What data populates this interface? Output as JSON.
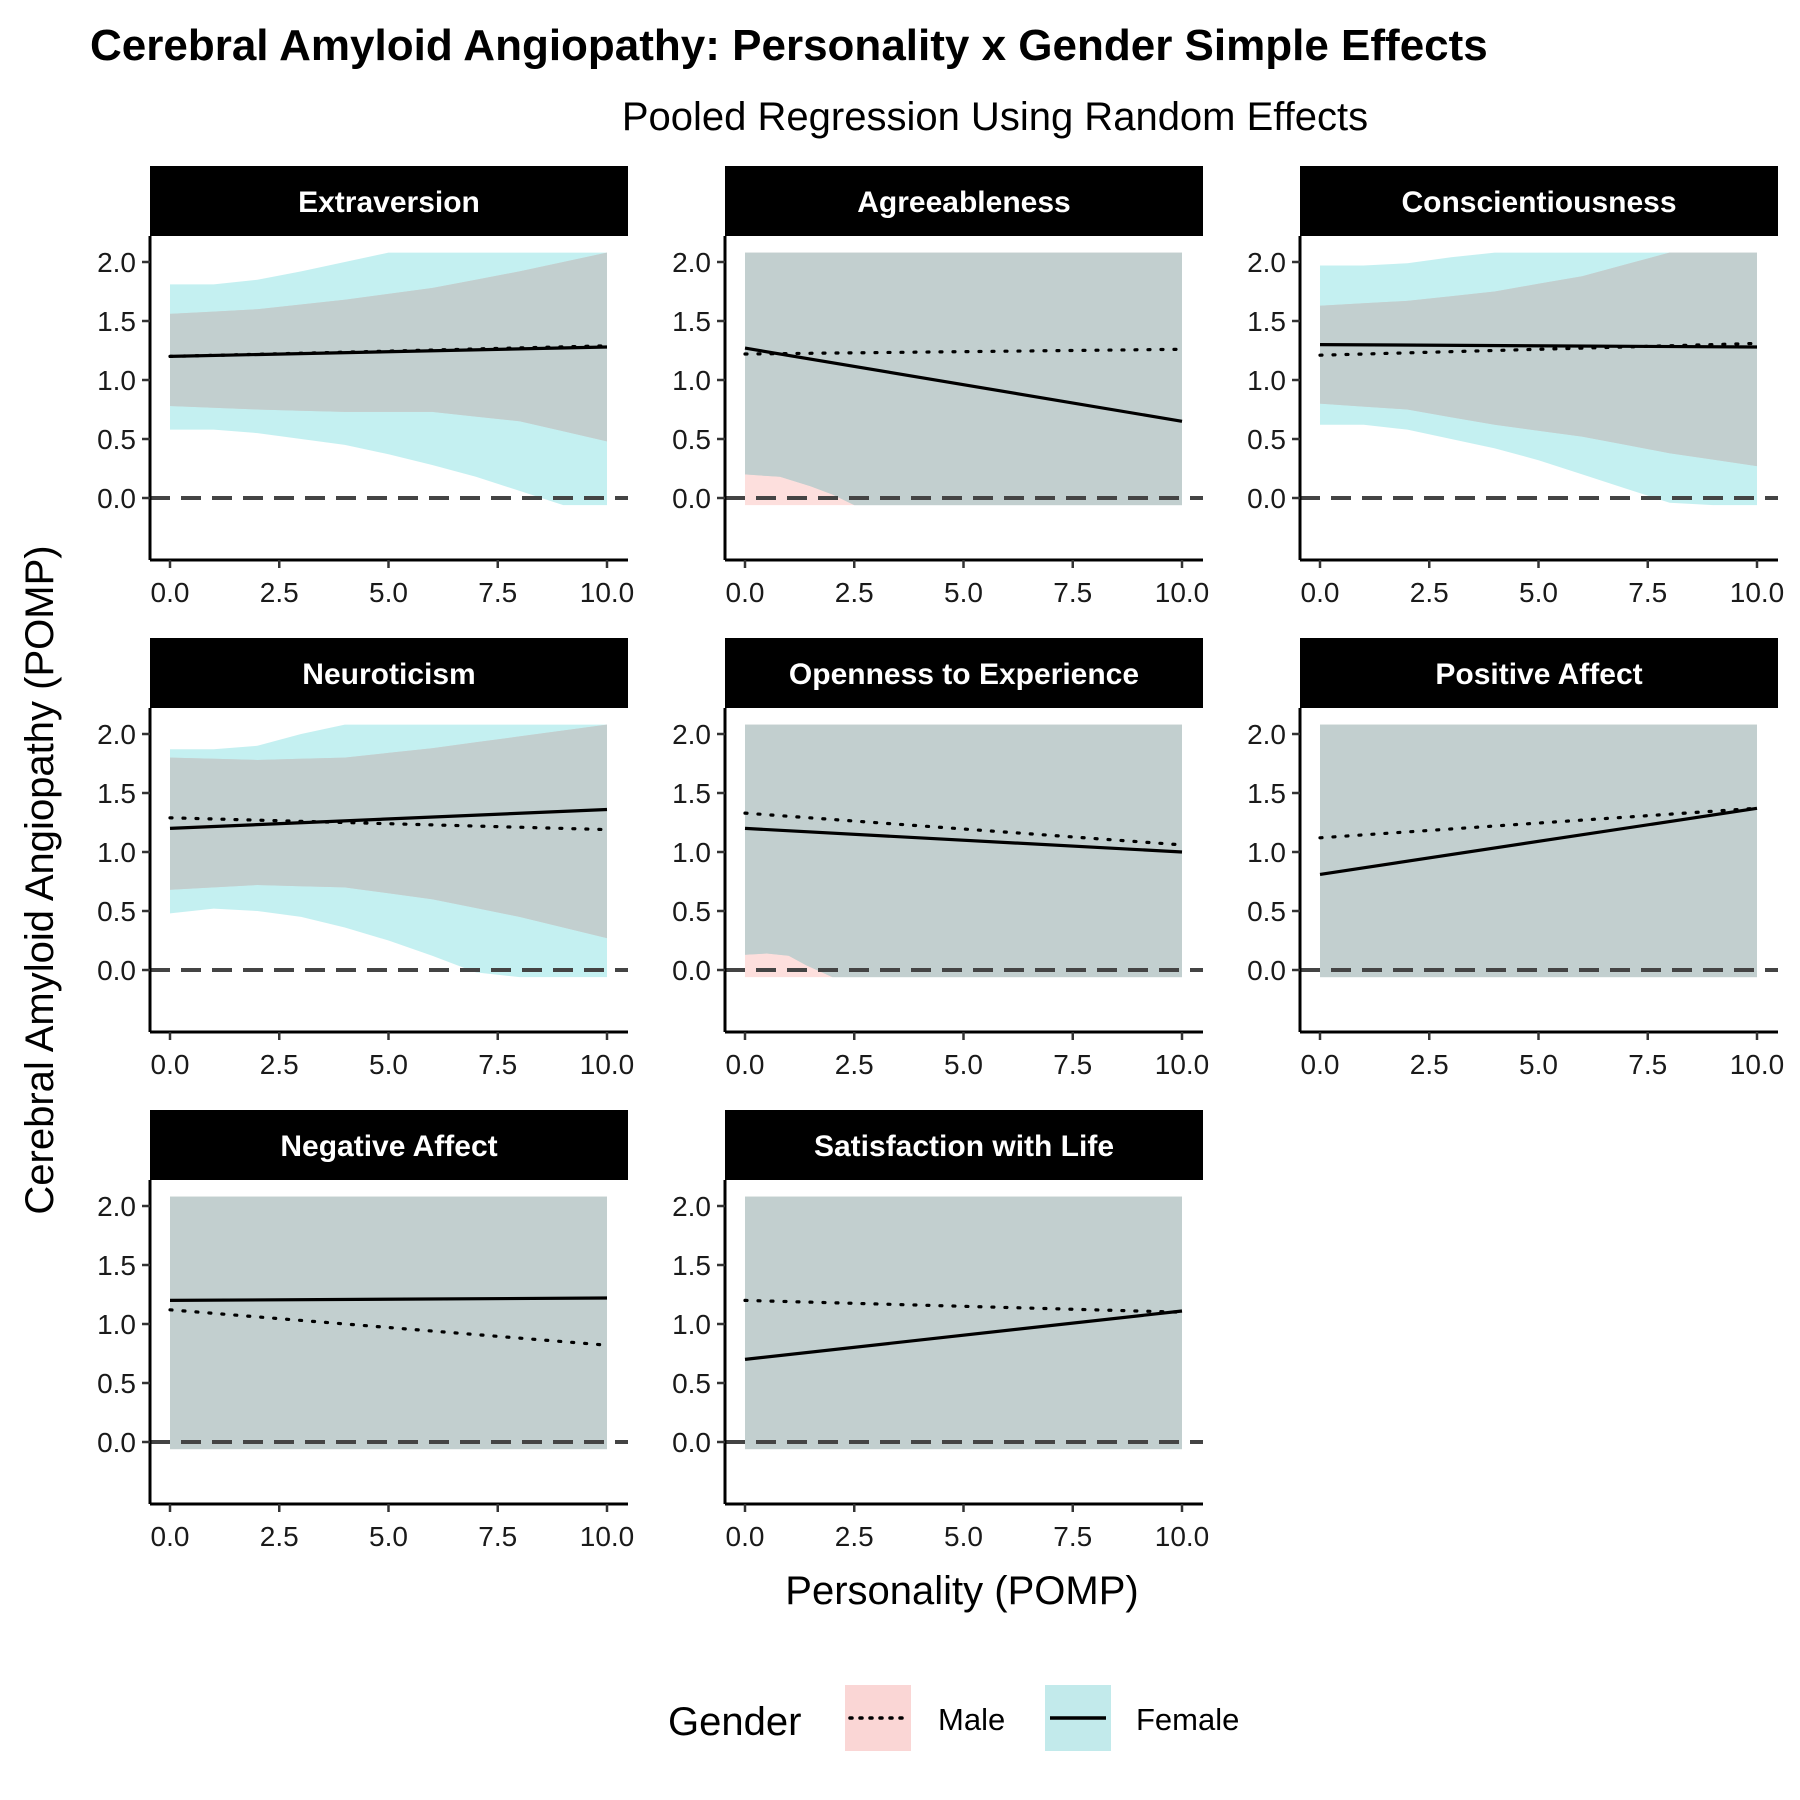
{
  "title": "Cerebral Amyloid Angiopathy: Personality x Gender Simple Effects",
  "subtitle": "Pooled Regression Using Random Effects",
  "x_axis_title": "Personality (POMP)",
  "y_axis_title": "Cerebral Amyloid Angiopathy (POMP)",
  "legend": {
    "title": "Gender",
    "items": [
      {
        "label": "Male",
        "linetype": "dotted",
        "fill": "#f8766d"
      },
      {
        "label": "Female",
        "linetype": "solid",
        "fill": "#00bfc4"
      }
    ]
  },
  "colors": {
    "male_ribbon": "#f8766d",
    "female_ribbon": "#00bfc4",
    "overlap_ribbon": "#c2cfcf",
    "strip_background": "#000000",
    "reference_line": "#444444"
  },
  "chart_data": {
    "type": "line",
    "x_ticks": [
      "0.0",
      "2.5",
      "5.0",
      "7.5",
      "10.0"
    ],
    "y_ticks": [
      "0.0",
      "0.5",
      "1.0",
      "1.5",
      "2.0"
    ],
    "xlim": [
      0,
      10
    ],
    "ylim": [
      -0.1,
      2.1
    ],
    "reference_line_y": 0,
    "panels": [
      {
        "label": "Extraversion",
        "male": {
          "x": [
            0,
            10
          ],
          "y": [
            1.2,
            1.29
          ]
        },
        "female": {
          "x": [
            0,
            10
          ],
          "y": [
            1.2,
            1.28
          ]
        },
        "male_band": {
          "x": [
            0,
            2,
            4,
            6,
            8,
            10
          ],
          "lower": [
            0.78,
            0.75,
            0.73,
            0.73,
            0.65,
            0.48
          ],
          "upper": [
            1.56,
            1.6,
            1.68,
            1.78,
            1.92,
            2.08
          ]
        },
        "female_band": {
          "x": [
            0,
            1,
            2,
            3,
            4,
            5,
            6,
            7,
            8,
            9,
            10
          ],
          "lower": [
            0.58,
            0.58,
            0.55,
            0.5,
            0.45,
            0.37,
            0.28,
            0.18,
            0.06,
            -0.06,
            -0.06
          ],
          "upper": [
            1.81,
            1.81,
            1.85,
            1.92,
            2.0,
            2.08,
            2.08,
            2.08,
            2.08,
            2.08,
            2.08
          ]
        }
      },
      {
        "label": "Agreeableness",
        "male": {
          "x": [
            0,
            10
          ],
          "y": [
            1.22,
            1.26
          ]
        },
        "female": {
          "x": [
            0,
            10
          ],
          "y": [
            1.27,
            0.65
          ]
        },
        "male_band": {
          "x": [
            0,
            10
          ],
          "lower": [
            -0.06,
            -0.06
          ],
          "upper": [
            2.08,
            2.08
          ]
        },
        "female_band": {
          "x": [
            0,
            0.8,
            1.5,
            2.0,
            2.5,
            10
          ],
          "lower": [
            0.2,
            0.18,
            0.1,
            0.03,
            -0.06,
            -0.06
          ],
          "upper": [
            2.08,
            2.08,
            2.08,
            2.08,
            2.08,
            2.08
          ]
        }
      },
      {
        "label": "Conscientiousness",
        "male": {
          "x": [
            0,
            10
          ],
          "y": [
            1.21,
            1.31
          ]
        },
        "female": {
          "x": [
            0,
            10
          ],
          "y": [
            1.3,
            1.28
          ]
        },
        "male_band": {
          "x": [
            0,
            2,
            4,
            6,
            8,
            10
          ],
          "lower": [
            0.8,
            0.75,
            0.62,
            0.52,
            0.38,
            0.27
          ],
          "upper": [
            1.63,
            1.67,
            1.75,
            1.88,
            2.08,
            2.08
          ]
        },
        "female_band": {
          "x": [
            0,
            1,
            2,
            3,
            4,
            5,
            6,
            7,
            8,
            9,
            10
          ],
          "lower": [
            0.62,
            0.62,
            0.58,
            0.5,
            0.42,
            0.32,
            0.2,
            0.08,
            -0.04,
            -0.06,
            -0.06
          ],
          "upper": [
            1.97,
            1.97,
            1.99,
            2.04,
            2.08,
            2.08,
            2.08,
            2.08,
            2.08,
            2.08,
            2.08
          ]
        }
      },
      {
        "label": "Neuroticism",
        "male": {
          "x": [
            0,
            10
          ],
          "y": [
            1.29,
            1.19
          ]
        },
        "female": {
          "x": [
            0,
            10
          ],
          "y": [
            1.2,
            1.36
          ]
        },
        "male_band": {
          "x": [
            0,
            2,
            4,
            6,
            8,
            10
          ],
          "lower": [
            0.68,
            0.72,
            0.7,
            0.6,
            0.45,
            0.27
          ],
          "upper": [
            1.8,
            1.78,
            1.8,
            1.88,
            1.98,
            2.08
          ]
        },
        "female_band": {
          "x": [
            0,
            1,
            2,
            3,
            4,
            5,
            6,
            7,
            8,
            9,
            10
          ],
          "lower": [
            0.48,
            0.52,
            0.5,
            0.45,
            0.36,
            0.25,
            0.12,
            -0.02,
            -0.06,
            -0.06,
            -0.06
          ],
          "upper": [
            1.87,
            1.87,
            1.9,
            2.0,
            2.08,
            2.08,
            2.08,
            2.08,
            2.08,
            2.08,
            2.08
          ]
        }
      },
      {
        "label": "Openness to Experience",
        "male": {
          "x": [
            0,
            10
          ],
          "y": [
            1.33,
            1.06
          ]
        },
        "female": {
          "x": [
            0,
            10
          ],
          "y": [
            1.2,
            1.0
          ]
        },
        "male_band": {
          "x": [
            0,
            10
          ],
          "lower": [
            -0.06,
            -0.06
          ],
          "upper": [
            2.08,
            2.08
          ]
        },
        "female_band": {
          "x": [
            0,
            0.5,
            1.0,
            1.4,
            2.0,
            10
          ],
          "lower": [
            0.13,
            0.14,
            0.12,
            0.04,
            -0.06,
            -0.06
          ],
          "upper": [
            2.08,
            2.08,
            2.08,
            2.08,
            2.08,
            2.08
          ]
        }
      },
      {
        "label": "Positive Affect",
        "male": {
          "x": [
            0,
            10
          ],
          "y": [
            1.12,
            1.37
          ]
        },
        "female": {
          "x": [
            0,
            10
          ],
          "y": [
            0.81,
            1.37
          ]
        },
        "male_band": {
          "x": [
            0,
            10
          ],
          "lower": [
            -0.06,
            -0.06
          ],
          "upper": [
            2.08,
            2.08
          ]
        },
        "female_band": {
          "x": [
            0,
            10
          ],
          "lower": [
            -0.06,
            -0.06
          ],
          "upper": [
            2.08,
            2.08
          ]
        }
      },
      {
        "label": "Negative Affect",
        "male": {
          "x": [
            0,
            10
          ],
          "y": [
            1.12,
            0.82
          ]
        },
        "female": {
          "x": [
            0,
            10
          ],
          "y": [
            1.2,
            1.22
          ]
        },
        "male_band": {
          "x": [
            0,
            10
          ],
          "lower": [
            -0.06,
            -0.06
          ],
          "upper": [
            2.08,
            2.08
          ]
        },
        "female_band": {
          "x": [
            0,
            10
          ],
          "lower": [
            -0.06,
            -0.06
          ],
          "upper": [
            2.08,
            2.08
          ]
        }
      },
      {
        "label": "Satisfaction with Life",
        "male": {
          "x": [
            0,
            10
          ],
          "y": [
            1.2,
            1.1
          ]
        },
        "female": {
          "x": [
            0,
            10
          ],
          "y": [
            0.7,
            1.11
          ]
        },
        "male_band": {
          "x": [
            0,
            10
          ],
          "lower": [
            -0.06,
            -0.06
          ],
          "upper": [
            2.08,
            2.08
          ]
        },
        "female_band": {
          "x": [
            0,
            10
          ],
          "lower": [
            -0.06,
            -0.06
          ],
          "upper": [
            2.08,
            2.08
          ]
        }
      }
    ]
  }
}
